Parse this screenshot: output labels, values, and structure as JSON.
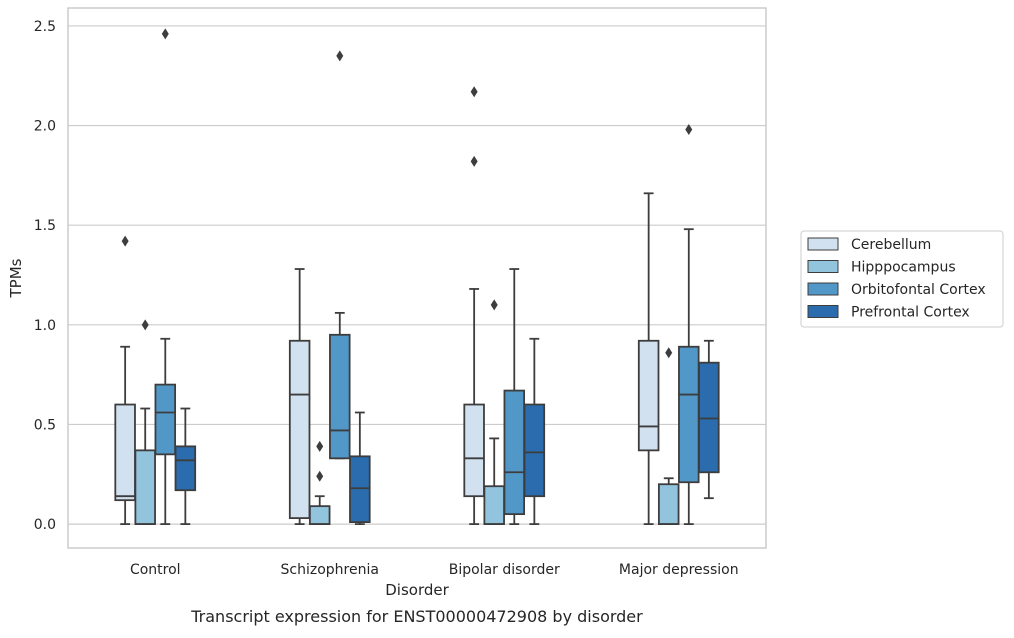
{
  "caption": "Transcript expression for ENST00000472908 by disorder",
  "chart_data": {
    "type": "box",
    "xlabel": "Disorder",
    "ylabel": "TPMs",
    "ylim": [
      -0.12,
      2.59
    ],
    "yticks": [
      0.0,
      0.5,
      1.0,
      1.5,
      2.0,
      2.5
    ],
    "ytick_labels": [
      "0.0",
      "0.5",
      "1.0",
      "1.5",
      "2.0",
      "2.5"
    ],
    "categories": [
      "Control",
      "Schizophrenia",
      "Bipolar disorder",
      "Major depression"
    ],
    "grid": "horizontal",
    "legend_position": "right",
    "series": [
      {
        "name": "Cerebellum",
        "color": "#d1e1f0",
        "boxes": [
          {
            "whislo": 0.0,
            "q1": 0.12,
            "med": 0.14,
            "q3": 0.6,
            "whishi": 0.89,
            "fliers": [
              1.42
            ]
          },
          {
            "whislo": 0.0,
            "q1": 0.03,
            "med": 0.65,
            "q3": 0.92,
            "whishi": 1.28,
            "fliers": []
          },
          {
            "whislo": 0.0,
            "q1": 0.14,
            "med": 0.33,
            "q3": 0.6,
            "whishi": 1.18,
            "fliers": [
              1.82,
              2.17
            ]
          },
          {
            "whislo": 0.0,
            "q1": 0.37,
            "med": 0.49,
            "q3": 0.92,
            "whishi": 1.66,
            "fliers": []
          }
        ]
      },
      {
        "name": "Hipppocampus",
        "color": "#93c4de",
        "boxes": [
          {
            "whislo": 0.0,
            "q1": 0.0,
            "med": 0.0,
            "q3": 0.37,
            "whishi": 0.58,
            "fliers": [
              1.0
            ]
          },
          {
            "whislo": 0.0,
            "q1": 0.0,
            "med": 0.0,
            "q3": 0.09,
            "whishi": 0.14,
            "fliers": [
              0.24,
              0.39
            ]
          },
          {
            "whislo": 0.0,
            "q1": 0.0,
            "med": 0.0,
            "q3": 0.19,
            "whishi": 0.43,
            "fliers": [
              1.1
            ]
          },
          {
            "whislo": 0.0,
            "q1": 0.0,
            "med": 0.0,
            "q3": 0.2,
            "whishi": 0.23,
            "fliers": [
              0.86
            ]
          }
        ]
      },
      {
        "name": "Orbitofontal Cortex",
        "color": "#5198c8",
        "boxes": [
          {
            "whislo": 0.0,
            "q1": 0.35,
            "med": 0.56,
            "q3": 0.7,
            "whishi": 0.93,
            "fliers": [
              2.46
            ]
          },
          {
            "whislo": 0.33,
            "q1": 0.33,
            "med": 0.47,
            "q3": 0.95,
            "whishi": 1.06,
            "fliers": [
              2.35
            ]
          },
          {
            "whislo": 0.0,
            "q1": 0.05,
            "med": 0.26,
            "q3": 0.67,
            "whishi": 1.28,
            "fliers": []
          },
          {
            "whislo": 0.0,
            "q1": 0.21,
            "med": 0.65,
            "q3": 0.89,
            "whishi": 1.48,
            "fliers": [
              1.98
            ]
          }
        ]
      },
      {
        "name": "Prefrontal Cortex",
        "color": "#2a6cad",
        "boxes": [
          {
            "whislo": 0.0,
            "q1": 0.17,
            "med": 0.32,
            "q3": 0.39,
            "whishi": 0.58,
            "fliers": []
          },
          {
            "whislo": 0.0,
            "q1": 0.01,
            "med": 0.18,
            "q3": 0.34,
            "whishi": 0.56,
            "fliers": []
          },
          {
            "whislo": 0.0,
            "q1": 0.14,
            "med": 0.36,
            "q3": 0.6,
            "whishi": 0.93,
            "fliers": []
          },
          {
            "whislo": 0.13,
            "q1": 0.26,
            "med": 0.53,
            "q3": 0.81,
            "whishi": 0.92,
            "fliers": []
          }
        ]
      }
    ]
  }
}
